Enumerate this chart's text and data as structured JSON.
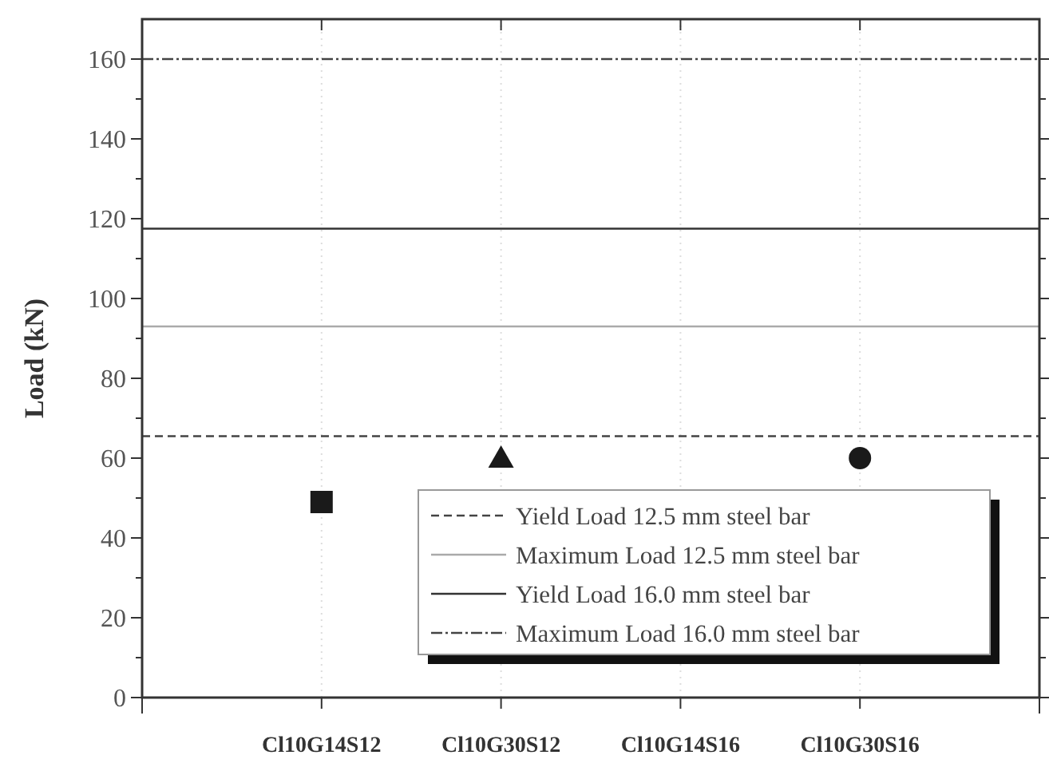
{
  "chart_data": {
    "type": "scatter",
    "ylabel": "Load (kN)",
    "categories": [
      "Cl10G14S12",
      "Cl10G30S12",
      "Cl10G14S16",
      "Cl10G30S16"
    ],
    "series": [
      {
        "marker": "square",
        "color": "#1a1a1a",
        "values": [
          49,
          null,
          null,
          null
        ]
      },
      {
        "marker": "triangle",
        "color": "#1a1a1a",
        "values": [
          null,
          60,
          null,
          null
        ]
      },
      {
        "marker": "circle",
        "color": "#1a1a1a",
        "values": [
          null,
          null,
          null,
          60
        ]
      }
    ],
    "ylim": [
      0,
      170
    ],
    "yticks": [
      0,
      {
        "value": 10,
        "label": null
      },
      20,
      {
        "value": 30,
        "label": null
      },
      40,
      {
        "value": 50,
        "label": null
      },
      60,
      {
        "value": 70,
        "label": null
      },
      80,
      {
        "value": 90,
        "label": null
      },
      100,
      {
        "value": 110,
        "label": null
      },
      120,
      {
        "value": 130,
        "label": null
      },
      140,
      {
        "value": 150,
        "label": null
      },
      160
    ],
    "ref_lines": [
      {
        "axis": "y",
        "value": 65.5,
        "label": "Yield Load 12.5 mm steel bar",
        "color": "#444444",
        "line_style": "dashed"
      },
      {
        "axis": "y",
        "value": 93,
        "label": "Maximum Load 12.5 mm steel bar",
        "color": "#aaaaaa",
        "line_style": "solid"
      },
      {
        "axis": "y",
        "value": 117.5,
        "label": "Yield Load 16.0 mm steel bar",
        "color": "#333333",
        "line_style": "solid"
      },
      {
        "axis": "y",
        "value": 160,
        "label": "Maximum Load 16.0 mm steel bar",
        "color": "#444444",
        "line_style": "dashdot"
      }
    ],
    "grid": "x",
    "legend": "bottom right"
  }
}
